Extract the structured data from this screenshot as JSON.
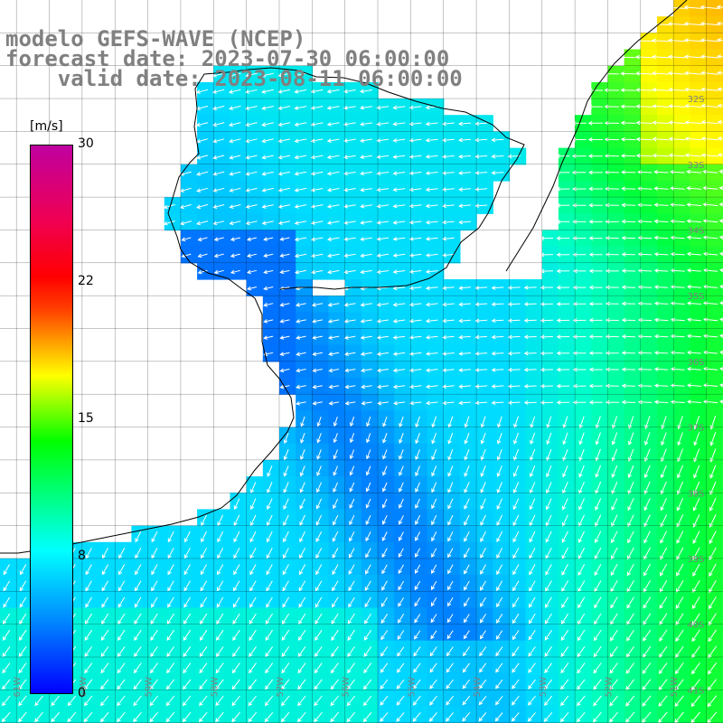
{
  "title": {
    "line1": "modelo GEFS-WAVE (NCEP)",
    "line2": "forecast date: 2023-07-30 06:00:00",
    "line3": "    valid date: 2023-08-11 06:00:00"
  },
  "legend": {
    "unit": "[m/s]",
    "ticks": [
      {
        "label": "30",
        "value": 30
      },
      {
        "label": "22",
        "value": 22
      },
      {
        "label": "15",
        "value": 15
      },
      {
        "label": "8",
        "value": 8
      },
      {
        "label": "0",
        "value": 0
      }
    ],
    "colors": [
      "#0000ff",
      "#00ffff",
      "#00ff00",
      "#ffff00",
      "#ff0000",
      "#c000a0"
    ]
  },
  "map": {
    "lon_range": [
      -61.25,
      -50.25
    ],
    "lat_range": [
      -41.5,
      -30.5
    ],
    "grid_step": 0.5,
    "lat_labels": [
      "32S",
      "33S",
      "34S",
      "35S",
      "36S",
      "37S",
      "38S",
      "39S",
      "40S",
      "41S"
    ],
    "lon_labels": [
      "61W",
      "60W",
      "59W",
      "58W",
      "57W",
      "56W",
      "55W",
      "54W",
      "53W",
      "52W",
      "51W"
    ]
  }
}
